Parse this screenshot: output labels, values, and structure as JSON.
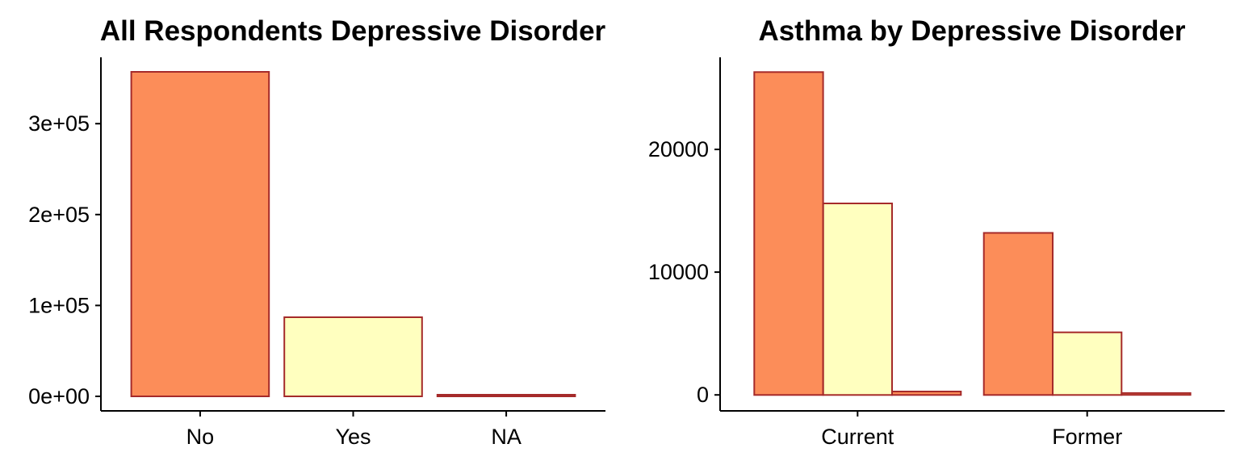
{
  "colors": {
    "no": "#FC8D59",
    "yes": "#FFFFBF",
    "na": "#FC8D59",
    "bar_outline": "#A52A2A",
    "axis": "#000000"
  },
  "chart_data": [
    {
      "type": "bar",
      "title": "All Respondents Depressive Disorder",
      "xlabel": "",
      "ylabel": "",
      "categories": [
        "No",
        "Yes",
        "NA"
      ],
      "values": [
        357000,
        87000,
        1500
      ],
      "ylim": [
        -16000,
        373000
      ],
      "yticks": [
        0,
        100000,
        200000,
        300000
      ],
      "ytick_labels": [
        "0e+00",
        "1e+05",
        "2e+05",
        "3e+05"
      ],
      "grid": false,
      "legend": "none"
    },
    {
      "type": "bar",
      "title": "Asthma by Depressive Disorder",
      "xlabel": "",
      "ylabel": "",
      "categories": [
        "Current",
        "Former"
      ],
      "series": [
        {
          "values": [
            26300,
            13200
          ]
        },
        {
          "values": [
            15600,
            5100
          ]
        },
        {
          "values": [
            280,
            150
          ]
        }
      ],
      "ylim": [
        -1300,
        27500
      ],
      "yticks": [
        0,
        10000,
        20000
      ],
      "ytick_labels": [
        "0",
        "10000",
        "20000"
      ],
      "grid": false,
      "legend": "none"
    }
  ]
}
